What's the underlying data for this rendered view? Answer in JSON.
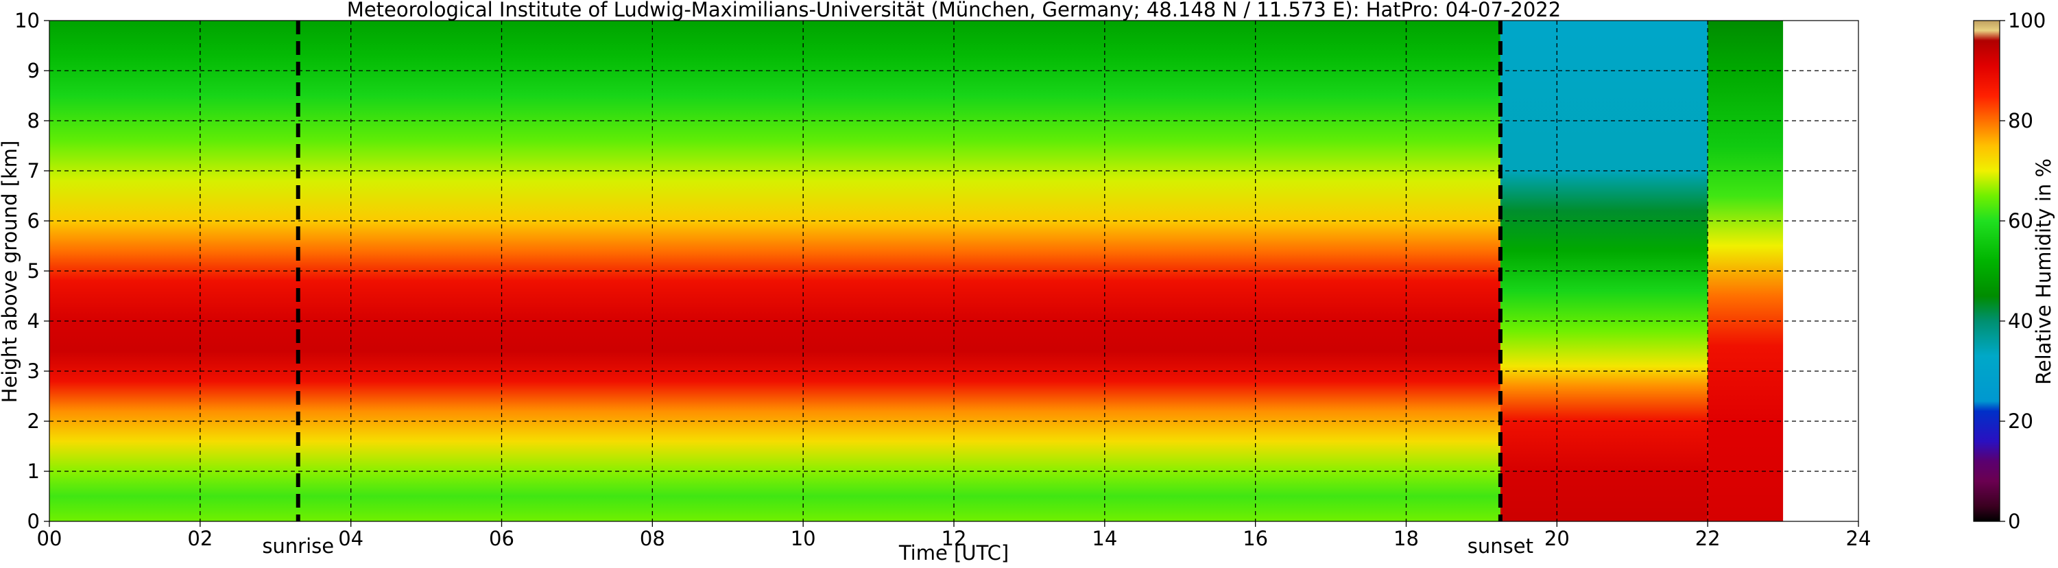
{
  "chart_data": {
    "type": "heatmap",
    "title": "Meteorological Institute of Ludwig-Maximilians-Universität (München, Germany; 48.148 N / 11.573 E):    HatPro: 04-07-2022",
    "xlabel": "Time [UTC]",
    "ylabel": "Height above ground [km]",
    "xlim": [
      0,
      24
    ],
    "ylim": [
      0,
      10
    ],
    "x_ticks": [
      "00",
      "02",
      "04",
      "06",
      "08",
      "10",
      "12",
      "14",
      "16",
      "18",
      "20",
      "22",
      "24"
    ],
    "y_ticks": [
      "0",
      "1",
      "2",
      "3",
      "4",
      "5",
      "6",
      "7",
      "8",
      "9",
      "10"
    ],
    "grid": true,
    "data_end_hour": 23.0,
    "events": [
      {
        "label": "sunrise",
        "hour": 3.3
      },
      {
        "label": "sunset",
        "hour": 19.25
      }
    ],
    "colorbar": {
      "label": "Relative Humidity in %",
      "range": [
        0,
        100
      ],
      "ticks": [
        "0",
        "20",
        "40",
        "60",
        "80",
        "100"
      ],
      "stops": [
        {
          "v": 0,
          "c": "#000000"
        },
        {
          "v": 3,
          "c": "#3a0020"
        },
        {
          "v": 8,
          "c": "#6a0050"
        },
        {
          "v": 12,
          "c": "#5a0070"
        },
        {
          "v": 16,
          "c": "#2a10c0"
        },
        {
          "v": 22,
          "c": "#0030c8"
        },
        {
          "v": 24,
          "c": "#0098d0"
        },
        {
          "v": 33,
          "c": "#00a8c8"
        },
        {
          "v": 40,
          "c": "#009070"
        },
        {
          "v": 45,
          "c": "#008c00"
        },
        {
          "v": 52,
          "c": "#00b400"
        },
        {
          "v": 60,
          "c": "#20e020"
        },
        {
          "v": 65,
          "c": "#70f000"
        },
        {
          "v": 70,
          "c": "#f0f000"
        },
        {
          "v": 75,
          "c": "#ffc000"
        },
        {
          "v": 80,
          "c": "#ff7000"
        },
        {
          "v": 85,
          "c": "#ff2000"
        },
        {
          "v": 91,
          "c": "#e00000"
        },
        {
          "v": 96,
          "c": "#b00000"
        },
        {
          "v": 98,
          "c": "#e8d080"
        },
        {
          "v": 100,
          "c": "#c0a060"
        }
      ]
    },
    "humidity_profile": {
      "segments": [
        {
          "period": "00-19.25 UTC",
          "levels": [
            {
              "h": 0.0,
              "rh": 65
            },
            {
              "h": 0.5,
              "rh": 62
            },
            {
              "h": 1.0,
              "rh": 66
            },
            {
              "h": 1.6,
              "rh": 72
            },
            {
              "h": 2.2,
              "rh": 78
            },
            {
              "h": 2.8,
              "rh": 88
            },
            {
              "h": 3.4,
              "rh": 93
            },
            {
              "h": 4.0,
              "rh": 92
            },
            {
              "h": 4.8,
              "rh": 88
            },
            {
              "h": 5.4,
              "rh": 80
            },
            {
              "h": 6.0,
              "rh": 74
            },
            {
              "h": 6.8,
              "rh": 69
            },
            {
              "h": 7.6,
              "rh": 64
            },
            {
              "h": 8.5,
              "rh": 58
            },
            {
              "h": 9.3,
              "rh": 53
            },
            {
              "h": 10.0,
              "rh": 49
            }
          ]
        },
        {
          "period": "19.25-22 UTC",
          "levels": [
            {
              "h": 0.0,
              "rh": 93
            },
            {
              "h": 1.0,
              "rh": 92
            },
            {
              "h": 2.0,
              "rh": 88
            },
            {
              "h": 2.7,
              "rh": 78
            },
            {
              "h": 3.1,
              "rh": 71
            },
            {
              "h": 3.8,
              "rh": 65
            },
            {
              "h": 4.6,
              "rh": 58
            },
            {
              "h": 5.4,
              "rh": 50
            },
            {
              "h": 6.2,
              "rh": 43
            },
            {
              "h": 7.0,
              "rh": 34
            },
            {
              "h": 10.0,
              "rh": 32
            }
          ]
        },
        {
          "period": "22-23 UTC",
          "levels": [
            {
              "h": 0.0,
              "rh": 92
            },
            {
              "h": 2.0,
              "rh": 91
            },
            {
              "h": 3.5,
              "rh": 88
            },
            {
              "h": 4.5,
              "rh": 80
            },
            {
              "h": 5.5,
              "rh": 70
            },
            {
              "h": 6.5,
              "rh": 62
            },
            {
              "h": 7.5,
              "rh": 56
            },
            {
              "h": 9.0,
              "rh": 50
            },
            {
              "h": 10.0,
              "rh": 45
            }
          ]
        }
      ]
    }
  }
}
